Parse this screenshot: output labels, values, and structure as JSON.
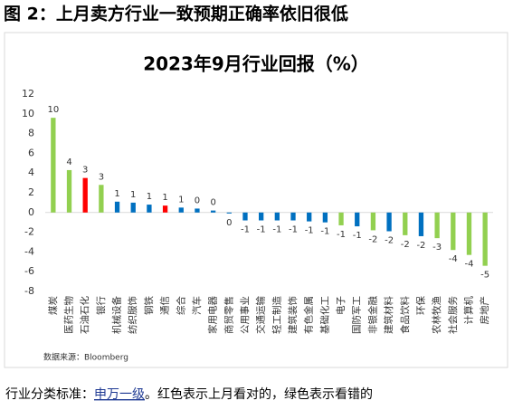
{
  "header": {
    "caption": "图 2：上月卖方行业一致预期正确率依旧很低"
  },
  "chart_data": {
    "type": "bar",
    "title": "2023年9月行业回报（%）",
    "categories": [
      "煤炭",
      "医药生物",
      "石油石化",
      "银行",
      "机械设备",
      "纺织服饰",
      "钢铁",
      "通信",
      "综合",
      "汽车",
      "家用电器",
      "商贸零售",
      "公用事业",
      "交通运输",
      "轻工制造",
      "建筑装饰",
      "有色金属",
      "基础化工",
      "电子",
      "国防军工",
      "非银金融",
      "建筑材料",
      "食品饮料",
      "环保",
      "农林牧渔",
      "社会服务",
      "计算机",
      "房地产"
    ],
    "values": [
      9.6,
      4.3,
      3.5,
      2.8,
      1.1,
      1.0,
      0.8,
      0.7,
      0.5,
      0.4,
      0.2,
      -0.1,
      -0.8,
      -0.8,
      -0.8,
      -0.8,
      -0.9,
      -1.0,
      -1.3,
      -1.4,
      -1.8,
      -1.9,
      -2.3,
      -2.4,
      -2.6,
      -3.8,
      -4.3,
      -5.4
    ],
    "value_labels": [
      "10",
      "4",
      "3",
      "3",
      "1",
      "1",
      "1",
      "1",
      "1",
      "0",
      "0",
      "0",
      "-1",
      "-1",
      "-1",
      "-1",
      "-1",
      "-1",
      "-1",
      "-1",
      "-2",
      "-2",
      "-2",
      "-2",
      "-3",
      "-4",
      "-4",
      "-5"
    ],
    "colors": [
      "#92d050",
      "#92d050",
      "#ff0000",
      "#92d050",
      "#0070c0",
      "#0070c0",
      "#0070c0",
      "#ff0000",
      "#0070c0",
      "#0070c0",
      "#0070c0",
      "#0070c0",
      "#0070c0",
      "#0070c0",
      "#0070c0",
      "#0070c0",
      "#0070c0",
      "#0070c0",
      "#92d050",
      "#0070c0",
      "#92d050",
      "#0070c0",
      "#92d050",
      "#0070c0",
      "#92d050",
      "#92d050",
      "#92d050",
      "#92d050"
    ],
    "ylim": [
      -8,
      12
    ],
    "yticks": [
      -8,
      -6,
      -4,
      -2,
      0,
      2,
      4,
      6,
      8,
      10,
      12
    ],
    "grid": false,
    "source": "数据来源：Bloomberg"
  },
  "footer": {
    "prefix": "行业分类标准：",
    "link": "申万一级",
    "suffix": "。红色表示上月看对的，绿色表示看错的"
  }
}
